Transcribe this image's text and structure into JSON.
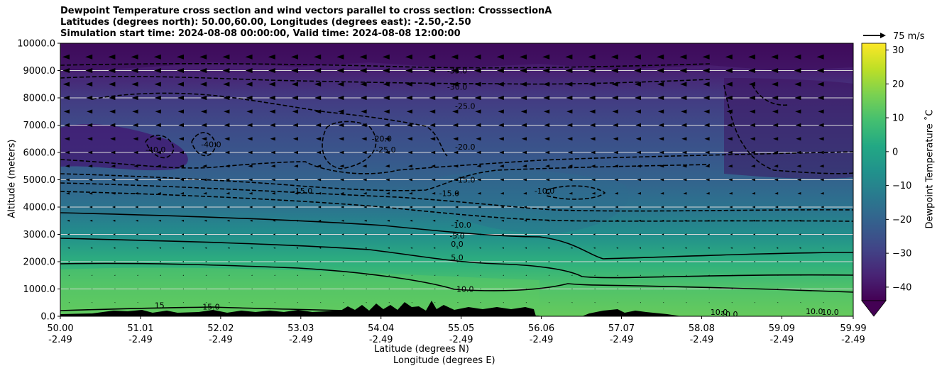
{
  "chart_data": {
    "type": "heatmap",
    "title_lines": [
      "Dewpoint Temperature cross section and wind vectors parallel to cross section: CrosssectionA",
      "Latitudes (degrees north): 50.00,60.00, Longitudes (degrees east): -2.50,-2.50",
      "Simulation start time: 2024-08-08 00:00:00, Valid time: 2024-08-08 12:00:00"
    ],
    "ylabel": "Altitude (meters)",
    "xlabel_lat": "Latitude (degrees N)",
    "xlabel_lon": "Longitude (degrees E)",
    "ylim": [
      0,
      10000
    ],
    "xlim": [
      50.0,
      59.99
    ],
    "y_ticks": [
      {
        "value": 0,
        "label": "0.0"
      },
      {
        "value": 1000,
        "label": "1000.0"
      },
      {
        "value": 2000,
        "label": "2000.0"
      },
      {
        "value": 3000,
        "label": "3000.0"
      },
      {
        "value": 4000,
        "label": "4000.0"
      },
      {
        "value": 5000,
        "label": "5000.0"
      },
      {
        "value": 6000,
        "label": "6000.0"
      },
      {
        "value": 7000,
        "label": "7000.0"
      },
      {
        "value": 8000,
        "label": "8000.0"
      },
      {
        "value": 9000,
        "label": "9000.0"
      },
      {
        "value": 10000,
        "label": "10000.0"
      }
    ],
    "x_ticks": [
      {
        "value": 50.0,
        "lat": "50.00",
        "lon": "-2.49"
      },
      {
        "value": 51.01,
        "lat": "51.01",
        "lon": "-2.49"
      },
      {
        "value": 52.02,
        "lat": "52.02",
        "lon": "-2.49"
      },
      {
        "value": 53.03,
        "lat": "53.03",
        "lon": "-2.49"
      },
      {
        "value": 54.04,
        "lat": "54.04",
        "lon": "-2.49"
      },
      {
        "value": 55.05,
        "lat": "55.05",
        "lon": "-2.49"
      },
      {
        "value": 56.06,
        "lat": "56.06",
        "lon": "-2.49"
      },
      {
        "value": 57.07,
        "lat": "57.07",
        "lon": "-2.49"
      },
      {
        "value": 58.08,
        "lat": "58.08",
        "lon": "-2.49"
      },
      {
        "value": 59.09,
        "lat": "59.09",
        "lon": "-2.49"
      },
      {
        "value": 59.99,
        "lat": "59.99",
        "lon": "-2.49"
      }
    ],
    "grid": "horizontal",
    "colormap": "viridis",
    "colorbar": {
      "label": "Dewpoint Temperature $^\\circ$C",
      "label_text": "Dewpoint Temperature ˚C",
      "range": [
        -44,
        32
      ],
      "ticks": [
        -40,
        -30,
        -20,
        -10,
        0,
        10,
        20,
        30
      ],
      "tick_labels": [
        "−40",
        "−30",
        "−20",
        "−10",
        "0",
        "10",
        "20",
        "30"
      ],
      "extend": "min"
    },
    "quiver_key": {
      "label": "75 m/s",
      "value": 75
    },
    "contour_labels": [
      {
        "text": "-35.0",
        "lat": 55.0,
        "alt": 8900
      },
      {
        "text": "-30.0",
        "lat": 55.0,
        "alt": 8300
      },
      {
        "text": "-25.0",
        "lat": 55.1,
        "alt": 7600
      },
      {
        "text": "-20.0",
        "lat": 55.1,
        "alt": 6100
      },
      {
        "text": "-15.0",
        "lat": 53.05,
        "alt": 4500
      },
      {
        "text": "-15.0",
        "lat": 54.9,
        "alt": 4400
      },
      {
        "text": "-15.0",
        "lat": 55.1,
        "alt": 4900
      },
      {
        "text": "-10.0",
        "lat": 56.1,
        "alt": 4500
      },
      {
        "text": "-10.0",
        "lat": 55.05,
        "alt": 3250
      },
      {
        "text": "-5.0",
        "lat": 55.0,
        "alt": 2850
      },
      {
        "text": "0.0",
        "lat": 55.0,
        "alt": 2550
      },
      {
        "text": "5.0",
        "lat": 55.0,
        "alt": 2050
      },
      {
        "text": "10.0",
        "lat": 55.1,
        "alt": 900
      },
      {
        "text": "15",
        "lat": 51.25,
        "alt": 300
      },
      {
        "text": "15.0",
        "lat": 51.9,
        "alt": 250
      },
      {
        "text": "10.0",
        "lat": 58.3,
        "alt": 50
      },
      {
        "text": "10.0",
        "lat": 59.5,
        "alt": 80
      },
      {
        "text": "10.0",
        "lat": 59.7,
        "alt": 50
      },
      {
        "text": "-20.0",
        "lat": 54.05,
        "alt": 6400
      },
      {
        "text": "-25.0",
        "lat": 54.1,
        "alt": 6000
      },
      {
        "text": "-40.0",
        "lat": 51.2,
        "alt": 6000
      },
      {
        "text": "-40.0",
        "lat": 51.9,
        "alt": 6200
      }
    ],
    "field_approx": [
      {
        "alt": 0,
        "value": 14
      },
      {
        "alt": 1000,
        "value": 11
      },
      {
        "alt": 2000,
        "value": 4
      },
      {
        "alt": 3000,
        "value": -7
      },
      {
        "alt": 4000,
        "value": -15
      },
      {
        "alt": 5000,
        "value": -20
      },
      {
        "alt": 6000,
        "value": -24
      },
      {
        "alt": 7000,
        "value": -27
      },
      {
        "alt": 8000,
        "value": -31
      },
      {
        "alt": 9000,
        "value": -37
      },
      {
        "alt": 10000,
        "value": -42
      }
    ]
  }
}
